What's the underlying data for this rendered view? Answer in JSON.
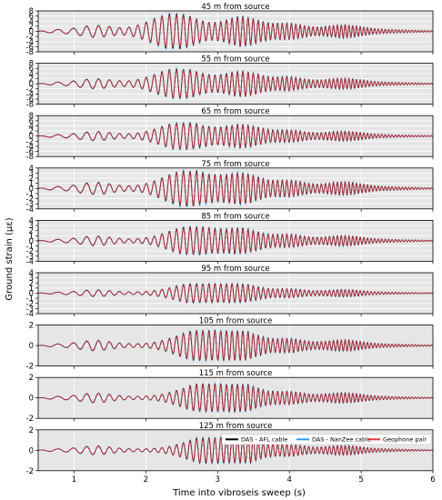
{
  "chart_data": {
    "type": "line",
    "xlabel": "Time into vibroseis sweep (s)",
    "ylabel": "Ground strain (με)",
    "xlim": [
      0.5,
      6
    ],
    "x_ticks": [
      "1",
      "2",
      "3",
      "4",
      "5",
      "6"
    ],
    "grid": true,
    "legend": {
      "placement": "bottom-right of last panel",
      "entries": [
        {
          "name": "DAS - AFL cable",
          "color": "#000000"
        },
        {
          "name": "DAS - NanZee cable",
          "color": "#2a9df4"
        },
        {
          "name": "Geophone pair",
          "color": "#e8343f"
        }
      ]
    },
    "panels": [
      {
        "title": "45 m from source",
        "ylim": [
          -8,
          8
        ],
        "y_ticks": [
          "-8",
          "-6",
          "-4",
          "-2",
          "0",
          "2",
          "4",
          "6",
          "8"
        ],
        "amplitude": 6.5
      },
      {
        "title": "55 m from source",
        "ylim": [
          -8,
          8
        ],
        "y_ticks": [
          "-8",
          "-6",
          "-4",
          "-2",
          "0",
          "2",
          "4",
          "6",
          "8"
        ],
        "amplitude": 5.5
      },
      {
        "title": "65 m from source",
        "ylim": [
          -8,
          8
        ],
        "y_ticks": [
          "-8",
          "-6",
          "-4",
          "-2",
          "0",
          "2",
          "4",
          "6",
          "8"
        ],
        "amplitude": 5.0
      },
      {
        "title": "75 m from source",
        "ylim": [
          -4,
          4
        ],
        "y_ticks": [
          "-4",
          "-3",
          "-2",
          "-1",
          "0",
          "1",
          "2",
          "3",
          "4"
        ],
        "amplitude": 3.3
      },
      {
        "title": "85 m from source",
        "ylim": [
          -4,
          4
        ],
        "y_ticks": [
          "-4",
          "-3",
          "-2",
          "-1",
          "0",
          "1",
          "2",
          "3",
          "4"
        ],
        "amplitude": 2.6
      },
      {
        "title": "95 m from source",
        "ylim": [
          -4,
          4
        ],
        "y_ticks": [
          "-4",
          "-3",
          "-2",
          "-1",
          "0",
          "1",
          "2",
          "3",
          "4"
        ],
        "amplitude": 1.8
      },
      {
        "title": "105 m from source",
        "ylim": [
          -2,
          2
        ],
        "y_ticks": [
          "-2",
          "0",
          "2"
        ],
        "amplitude": 1.4
      },
      {
        "title": "115 m from source",
        "ylim": [
          -2,
          2
        ],
        "y_ticks": [
          "-2",
          "0",
          "2"
        ],
        "amplitude": 1.3
      },
      {
        "title": "125 m from source",
        "ylim": [
          -2,
          2
        ],
        "y_ticks": [
          "-2",
          "0",
          "2"
        ],
        "amplitude": 1.2
      }
    ]
  }
}
